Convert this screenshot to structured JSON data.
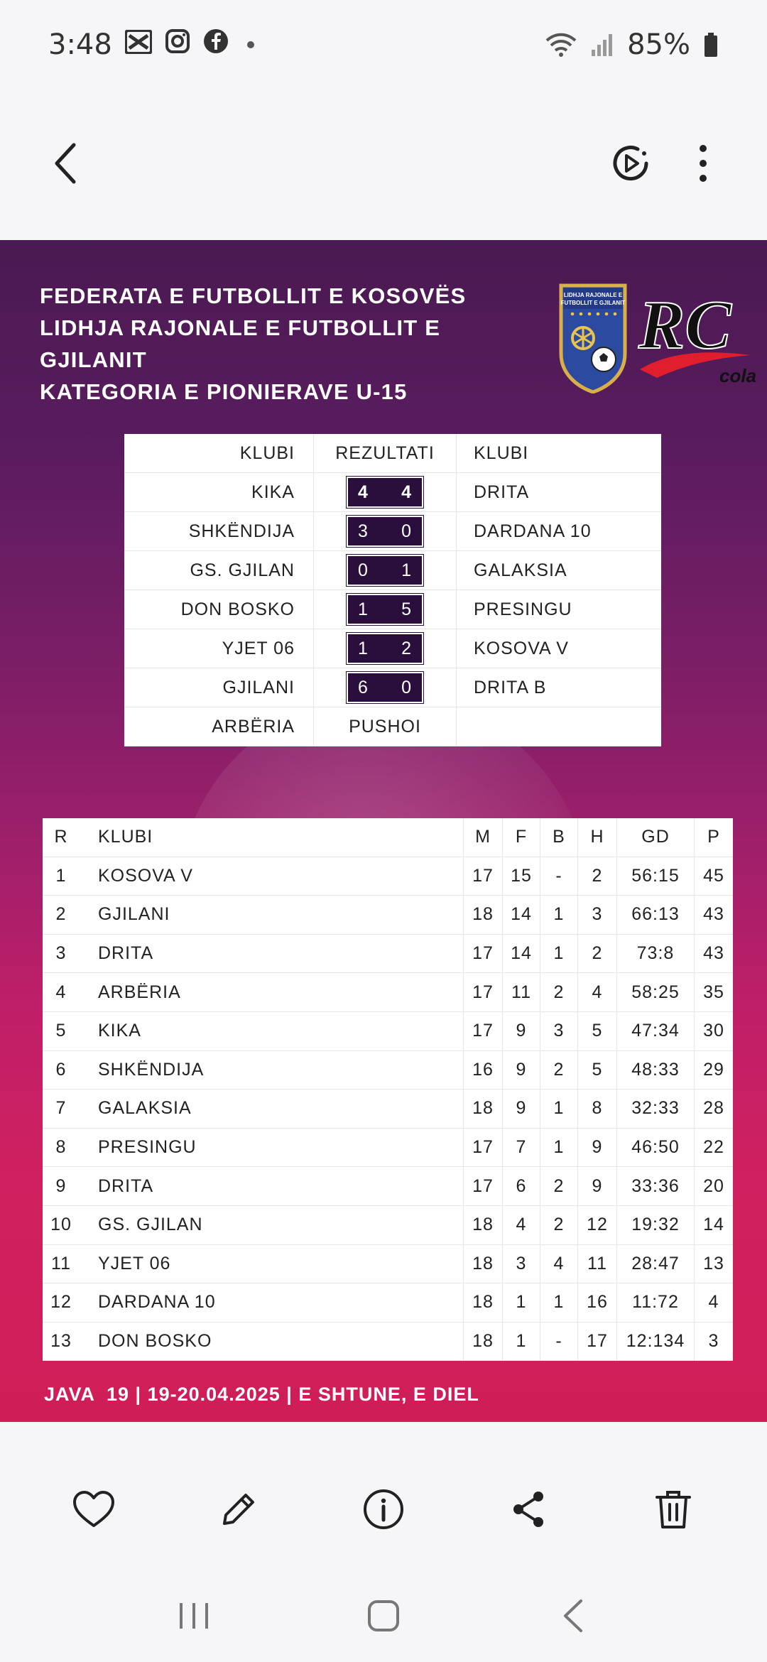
{
  "status_bar": {
    "time": "3:48",
    "battery": "85%",
    "icons": [
      "x-app-icon",
      "instagram-icon",
      "facebook-icon",
      "notification-dot",
      "wifi-icon",
      "signal-icon",
      "battery-icon"
    ]
  },
  "top_bar": {
    "icons": [
      "back-icon",
      "motion-photo-icon",
      "more-options-icon"
    ]
  },
  "poster": {
    "title_lines": [
      "FEDERATA E FUTBOLLIT E KOSOVËS",
      "LIDHJA RAJONALE E FUTBOLLIT E GJILANIT",
      "KATEGORIA E PIONIERAVE U-15"
    ],
    "logo_shield_text": "LIDHJA RAJONALE E FUTBOLLIT E GJILANIT",
    "sponsor_logo_text": "RC cola",
    "colors": {
      "score_bg": "#2a0f3c",
      "poster_top": "#4a1a52",
      "poster_bottom": "#cf1d57"
    },
    "matches": {
      "headers": {
        "home": "KLUBI",
        "result": "REZULTATI",
        "away": "KLUBI"
      },
      "rows": [
        {
          "home": "KIKA",
          "home_score": "4",
          "away_score": "4",
          "away": "DRITA"
        },
        {
          "home": "SHKËNDIJA",
          "home_score": "3",
          "away_score": "0",
          "away": "DARDANA 10"
        },
        {
          "home": "GS. GJILAN",
          "home_score": "0",
          "away_score": "1",
          "away": "GALAKSIA"
        },
        {
          "home": "DON BOSKO",
          "home_score": "1",
          "away_score": "5",
          "away": "PRESINGU"
        },
        {
          "home": "YJET 06",
          "home_score": "1",
          "away_score": "2",
          "away": "KOSOVA V"
        },
        {
          "home": "GJILANI",
          "home_score": "6",
          "away_score": "0",
          "away": "DRITA B"
        },
        {
          "home": "ARBËRIA",
          "result_text": "PUSHOI",
          "away": ""
        }
      ]
    },
    "standings": {
      "headers": {
        "r": "R",
        "club": "KLUBI",
        "m": "M",
        "f": "F",
        "b": "B",
        "h": "H",
        "gd": "GD",
        "p": "P"
      },
      "rows": [
        {
          "r": "1",
          "club": "KOSOVA V",
          "m": "17",
          "f": "15",
          "b": "-",
          "h": "2",
          "gd": "56:15",
          "p": "45"
        },
        {
          "r": "2",
          "club": "GJILANI",
          "m": "18",
          "f": "14",
          "b": "1",
          "h": "3",
          "gd": "66:13",
          "p": "43"
        },
        {
          "r": "3",
          "club": "DRITA",
          "m": "17",
          "f": "14",
          "b": "1",
          "h": "2",
          "gd": "73:8",
          "p": "43"
        },
        {
          "r": "4",
          "club": "ARBËRIA",
          "m": "17",
          "f": "11",
          "b": "2",
          "h": "4",
          "gd": "58:25",
          "p": "35"
        },
        {
          "r": "5",
          "club": "KIKA",
          "m": "17",
          "f": "9",
          "b": "3",
          "h": "5",
          "gd": "47:34",
          "p": "30"
        },
        {
          "r": "6",
          "club": "SHKËNDIJA",
          "m": "16",
          "f": "9",
          "b": "2",
          "h": "5",
          "gd": "48:33",
          "p": "29"
        },
        {
          "r": "7",
          "club": "GALAKSIA",
          "m": "18",
          "f": "9",
          "b": "1",
          "h": "8",
          "gd": "32:33",
          "p": "28"
        },
        {
          "r": "8",
          "club": "PRESINGU",
          "m": "17",
          "f": "7",
          "b": "1",
          "h": "9",
          "gd": "46:50",
          "p": "22"
        },
        {
          "r": "9",
          "club": "DRITA",
          "m": "17",
          "f": "6",
          "b": "2",
          "h": "9",
          "gd": "33:36",
          "p": "20"
        },
        {
          "r": "10",
          "club": "GS. GJILAN",
          "m": "18",
          "f": "4",
          "b": "2",
          "h": "12",
          "gd": "19:32",
          "p": "14"
        },
        {
          "r": "11",
          "club": "YJET 06",
          "m": "18",
          "f": "3",
          "b": "4",
          "h": "11",
          "gd": "28:47",
          "p": "13"
        },
        {
          "r": "12",
          "club": "DARDANA 10",
          "m": "18",
          "f": "1",
          "b": "1",
          "h": "16",
          "gd": "11:72",
          "p": "4"
        },
        {
          "r": "13",
          "club": "DON BOSKO",
          "m": "18",
          "f": "1",
          "b": "-",
          "h": "17",
          "gd": "12:134",
          "p": "3"
        }
      ]
    },
    "footer": "JAVA  19 | 19-20.04.2025 | E SHTUNE, E DIEL"
  },
  "bottom_actions": {
    "icons": [
      "heart-icon",
      "edit-icon",
      "info-icon",
      "share-icon",
      "delete-icon"
    ]
  },
  "nav_bar": {
    "icons": [
      "recent-apps-icon",
      "home-icon",
      "nav-back-icon"
    ]
  }
}
